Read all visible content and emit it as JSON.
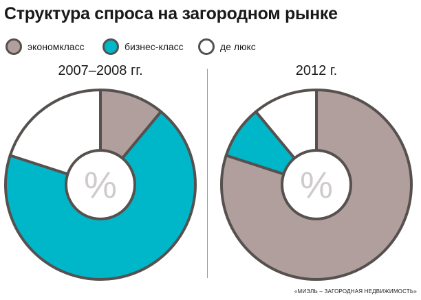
{
  "chart_data": {
    "type": "pie",
    "title": "Структура спроса на загородном рынке",
    "categories": [
      "эконом­класс",
      "бизнес-класс",
      "де люкс"
    ],
    "colors": {
      "эконом­класс": "#b09f9d",
      "бизнес-класс": "#00b7c9",
      "де люкс": "#ffffff",
      "stroke": "#56514f",
      "center_text": "#cfcccb"
    },
    "legend_position": "top-left",
    "center_label": "%",
    "series": [
      {
        "name": "2007–2008 гг.",
        "slices": [
          {
            "label": "эконом­класс",
            "value": 11
          },
          {
            "label": "бизнес-класс",
            "value": 69
          },
          {
            "label": "де люкс",
            "value": 20
          }
        ]
      },
      {
        "name": "2012 г.",
        "slices": [
          {
            "label": "эконом­класс",
            "value": 80
          },
          {
            "label": "бизнес-класс",
            "value": 9
          },
          {
            "label": "де люкс",
            "value": 11
          }
        ]
      }
    ]
  },
  "legend": {
    "items": [
      {
        "label": "экономкласс",
        "color": "#b09f9d"
      },
      {
        "label": "бизнес-класс",
        "color": "#00b7c9"
      },
      {
        "label": "де люкс",
        "color": "#ffffff"
      }
    ]
  },
  "source": "«МИЭЛЬ – ЗАГОРОДНАЯ НЕДВИЖИМОСТЬ»"
}
